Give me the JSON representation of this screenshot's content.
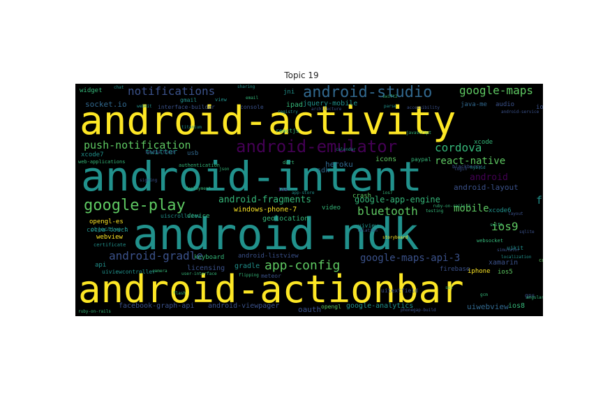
{
  "title": "Topic 19",
  "colors": {
    "yellow": "#fde725",
    "teal": "#21918c",
    "purple": "#3b528b",
    "green": "#5ec962",
    "dark_purple": "#440154",
    "mid_blue": "#31688e",
    "light_teal": "#35b779",
    "background": "#000000"
  },
  "words": {
    "android_activity": "android-activity",
    "android_intent": "android-intent",
    "android_ndk": "android-ndk",
    "android_actionbar": "android-actionbar",
    "android_studio": "android-studio",
    "android_emulator": "android-emulator",
    "notifications": "notifications",
    "google_maps": "google-maps",
    "push_notification": "push-notification",
    "google_play": "google-play",
    "cordova": "cordova",
    "react_native": "react-native",
    "android_fragments": "android-fragments",
    "bluetooth": "bluetooth",
    "mobile": "mobile",
    "facebook": "facebook",
    "ios9": "ios9",
    "android_gradle": "android-gradle",
    "app_config": "app-config",
    "google_maps_api_3": "google-maps-api-3",
    "google_app_engine": "google-app-engine",
    "android_layout": "android-layout",
    "android_small": "android",
    "twitter": "twitter",
    "xcode7": "xcode7",
    "xcode": "xcode",
    "heroku": "heroku",
    "icons": "icons",
    "sdk": "sdk",
    "socket_io": "socket.io",
    "widget": "widget",
    "gmail": "gmail",
    "interface_builder": "interface-builder",
    "console": "console",
    "jquery_mobile": "jquery-mobile",
    "ipad": "ipad",
    "java_me": "java-me",
    "audio": "audio",
    "windows_phone_7": "windows-phone-7",
    "geolocation": "geolocation",
    "video": "video",
    "crash": "crash",
    "opengl_es": "opengl-es",
    "objective_c": "objective-c",
    "webview": "webview",
    "cocoa_touch": "cocoa-touch",
    "api": "api",
    "uiviewcontroller": "uiviewcontroller",
    "licensing": "licensing",
    "keyboard": "keyboard",
    "android_listview": "android-listview",
    "gradle": "gradle",
    "uiview": "uiview",
    "firebase": "firebase",
    "iphone": "iphone",
    "ios5": "ios5",
    "xamarin": "xamarin",
    "facebook_graph_api": "facebook-graph-api",
    "android_viewpager": "android-viewpager",
    "oauth": "oauth",
    "opengl": "opengl",
    "google_analytics": "google-analytics",
    "uiwebview": "uiwebview",
    "ios8": "ios8",
    "uitextfield": "uitextfield",
    "uiscrollview": "uiscrollview",
    "certificate": "certificate",
    "jni": "jni",
    "reactjs": "reactjs",
    "meteor": "meteor",
    "xcode6": "xcode6",
    "uikit": "uikit",
    "paypal": "paypal",
    "dart": "dart",
    "blackberry": "blackberry",
    "web_applications": "web-applications",
    "authentication": "authentication",
    "device": "device",
    "usb": "usb",
    "ios": "ios",
    "gps": "gps",
    "webscoket": "websocket",
    "ruby_on_rails_3": "ruby-on-rails-3",
    "ruby_on_rails": "ruby-on-rails",
    "sencha_touch": "sencha-touch",
    "titanium": "titanium",
    "camera": "camera",
    "gcm": "gcm",
    "chat": "chat",
    "login": "login",
    "view": "view",
    "ssl": "ssl",
    "layout": "layout",
    "swift2": "swift2",
    "swift": "swift",
    "ios7": "ios7",
    "app_store": "app-store",
    "json": "json",
    "storyboard": "storyboard",
    "phonegap_build": "phonegap-build",
    "simulator": "simulator",
    "ionic_framework": "ionic-framework",
    "cordova_plugins": "cordova-plugins",
    "angularjs": "angularjs",
    "sqlite": "sqlite",
    "javascript": "javascript",
    "android_service": "android-service",
    "accessibility": "accessibility",
    "architecture": "architecture",
    "registry": "registry",
    "calendar": "calendar",
    "user_interface": "user-interface",
    "localization": "localization",
    "sharing": "sharing",
    "relation": "relation",
    "flash": "flash",
    "flipping": "flipping",
    "deployment": "deployment",
    "signing": "signing",
    "hybrid": "hybrid",
    "parse": "parse",
    "webkit": "webkit",
    "email": "email",
    "testing": "testing"
  }
}
